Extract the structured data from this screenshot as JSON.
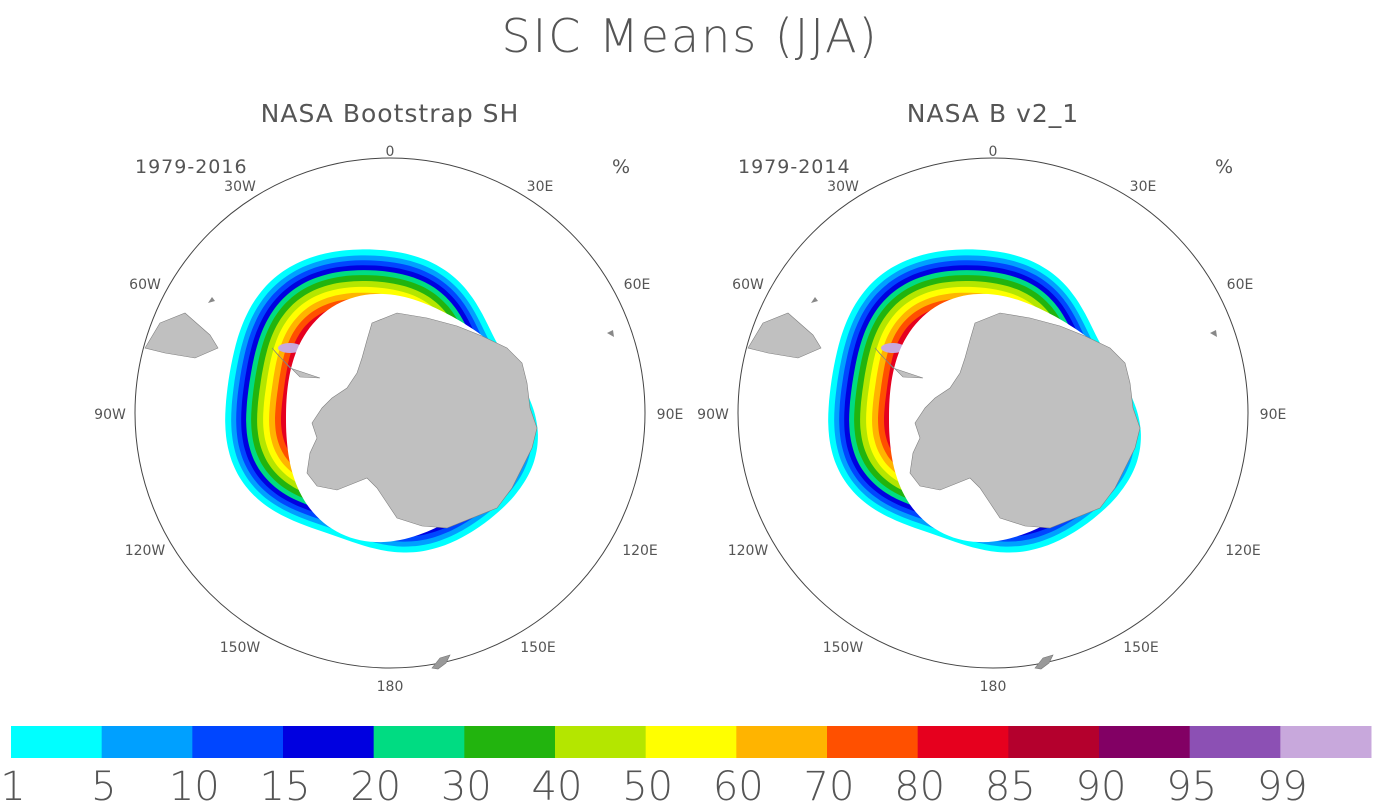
{
  "title": "SIC Means (JJA)",
  "panels": [
    {
      "title": "NASA Bootstrap SH",
      "years": "1979-2016",
      "unit": "%"
    },
    {
      "title": "NASA B v2_1",
      "years": "1979-2014",
      "unit": "%"
    }
  ],
  "longitude_labels": [
    "0",
    "30E",
    "60E",
    "90E",
    "120E",
    "150E",
    "180",
    "150W",
    "120W",
    "90W",
    "60W",
    "30W"
  ],
  "colorbar": {
    "colors": [
      "#00ffff",
      "#00a0ff",
      "#0046ff",
      "#0000e0",
      "#00dc82",
      "#22b40e",
      "#b4e600",
      "#ffff00",
      "#ffb400",
      "#ff5000",
      "#e6001e",
      "#b4002d",
      "#820064",
      "#8c50b4",
      "#c8a8dc"
    ],
    "labels": [
      "1",
      "5",
      "10",
      "15",
      "20",
      "30",
      "40",
      "50",
      "60",
      "70",
      "80",
      "85",
      "90",
      "95",
      "99"
    ]
  },
  "map_colors": {
    "land": "#c0c0c0",
    "coast": "#808080"
  }
}
